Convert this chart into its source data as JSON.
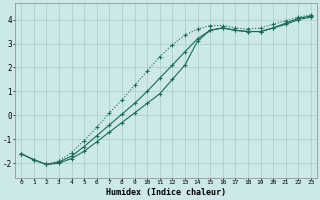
{
  "xlabel": "Humidex (Indice chaleur)",
  "bg_color": "#cce8e8",
  "grid_color": "#aacccc",
  "line_color": "#1a6b5a",
  "xlim": [
    -0.5,
    23.5
  ],
  "ylim": [
    -2.6,
    4.7
  ],
  "x_ticks": [
    0,
    1,
    2,
    3,
    4,
    5,
    6,
    7,
    8,
    9,
    10,
    11,
    12,
    13,
    14,
    15,
    16,
    17,
    18,
    19,
    20,
    21,
    22,
    23
  ],
  "y_ticks": [
    -2,
    -1,
    0,
    1,
    2,
    3,
    4
  ],
  "line1_x": [
    0,
    1,
    2,
    3,
    4,
    5,
    6,
    7,
    8,
    9,
    10,
    11,
    12,
    13,
    14,
    15,
    16,
    17,
    18,
    19,
    20,
    21,
    22,
    23
  ],
  "line1_y": [
    -1.6,
    -1.85,
    -2.05,
    -2.0,
    -1.8,
    -1.5,
    -1.1,
    -0.7,
    -0.3,
    0.1,
    0.5,
    0.9,
    1.5,
    2.1,
    3.1,
    3.55,
    3.65,
    3.55,
    3.5,
    3.5,
    3.65,
    3.8,
    4.0,
    4.1
  ],
  "line2_x": [
    0,
    1,
    2,
    3,
    4,
    5,
    6,
    7,
    8,
    9,
    10,
    11,
    12,
    13,
    14,
    15,
    16,
    17,
    18,
    19,
    20,
    21,
    22,
    23
  ],
  "line2_y": [
    -1.6,
    -1.85,
    -2.05,
    -1.95,
    -1.7,
    -1.3,
    -0.85,
    -0.4,
    0.05,
    0.5,
    1.0,
    1.55,
    2.1,
    2.65,
    3.2,
    3.55,
    3.65,
    3.55,
    3.5,
    3.5,
    3.65,
    3.85,
    4.05,
    4.15
  ],
  "line3_x": [
    0,
    1,
    2,
    3,
    4,
    5,
    6,
    7,
    8,
    9,
    10,
    11,
    12,
    13,
    14,
    15,
    16,
    17,
    18,
    19,
    20,
    21,
    22,
    23
  ],
  "line3_y": [
    -1.6,
    -1.85,
    -2.05,
    -1.9,
    -1.55,
    -1.05,
    -0.5,
    0.1,
    0.65,
    1.25,
    1.85,
    2.45,
    2.95,
    3.35,
    3.6,
    3.75,
    3.75,
    3.65,
    3.6,
    3.65,
    3.8,
    3.95,
    4.1,
    4.2
  ]
}
